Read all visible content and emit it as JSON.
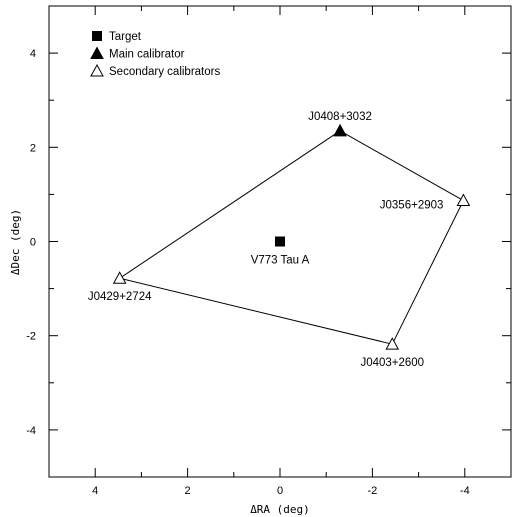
{
  "chart_data": {
    "type": "scatter",
    "xlabel": "ΔRA (deg)",
    "ylabel": "ΔDec (deg)",
    "xlim": [
      5,
      -5
    ],
    "ylim": [
      -5,
      5
    ],
    "x_ticks": [
      4,
      2,
      0,
      -2,
      -4
    ],
    "y_ticks": [
      4,
      2,
      0,
      -2,
      -4
    ],
    "x_tick_labels": [
      "4",
      "2",
      "0",
      "-2",
      "-4"
    ],
    "y_tick_labels": [
      "4",
      "2",
      "0",
      "-2",
      "-4"
    ],
    "grid": false,
    "legend_position": "top-left",
    "legend": [
      {
        "marker": "filled-square",
        "label": "Target"
      },
      {
        "marker": "filled-triangle",
        "label": "Main calibrator"
      },
      {
        "marker": "open-triangle",
        "label": "Secondary calibrators"
      }
    ],
    "points": [
      {
        "name": "V773 Tau A",
        "x": 0.0,
        "y": 0.0,
        "marker": "filled-square",
        "label_pos": "below"
      },
      {
        "name": "J0408+3032",
        "x": -1.3,
        "y": 2.35,
        "marker": "filled-triangle",
        "label_pos": "above"
      },
      {
        "name": "J0356+2903",
        "x": -3.97,
        "y": 0.87,
        "marker": "open-triangle",
        "label_pos": "left"
      },
      {
        "name": "J0403+2600",
        "x": -2.43,
        "y": -2.18,
        "marker": "open-triangle",
        "label_pos": "below"
      },
      {
        "name": "J0429+2724",
        "x": 3.47,
        "y": -0.78,
        "marker": "open-triangle",
        "label_pos": "below"
      }
    ],
    "polygon_order": [
      "J0408+3032",
      "J0356+2903",
      "J0403+2600",
      "J0429+2724"
    ]
  }
}
